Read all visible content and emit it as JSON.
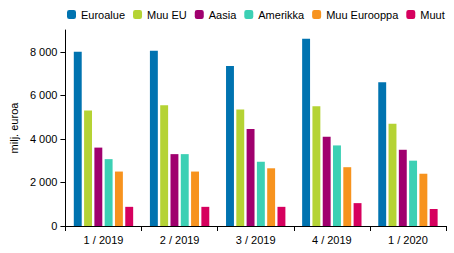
{
  "chart_data": {
    "type": "bar",
    "y_label": "milj. euroa",
    "categories": [
      "1 / 2019",
      "2 / 2019",
      "3 / 2019",
      "4 / 2019",
      "1 / 2020"
    ],
    "series": [
      {
        "name": "Euroalue",
        "color": "#0073b0",
        "values": [
          8000,
          8050,
          7350,
          8600,
          6600
        ]
      },
      {
        "name": "Muu EU",
        "color": "#b5d334",
        "values": [
          5300,
          5550,
          5350,
          5500,
          4700
        ]
      },
      {
        "name": "Aasia",
        "color": "#a0006e",
        "values": [
          3600,
          3300,
          4450,
          4100,
          3500
        ]
      },
      {
        "name": "Amerikka",
        "color": "#3cd0b4",
        "values": [
          3070,
          3300,
          2950,
          3700,
          3000
        ]
      },
      {
        "name": "Muu Eurooppa",
        "color": "#f7931e",
        "values": [
          2500,
          2500,
          2650,
          2700,
          2400
        ]
      },
      {
        "name": "Muut",
        "color": "#d6005e",
        "values": [
          880,
          880,
          880,
          1050,
          780
        ]
      }
    ],
    "ylim": [
      0,
      9000
    ],
    "yticks": [
      0,
      {
        "value": 2000,
        "label": "2 000"
      },
      {
        "value": 4000,
        "label": "4 000"
      },
      {
        "value": 6000,
        "label": "6 000"
      },
      {
        "value": 8000,
        "label": "8 000"
      }
    ],
    "grid": false,
    "legend": "top-left"
  }
}
